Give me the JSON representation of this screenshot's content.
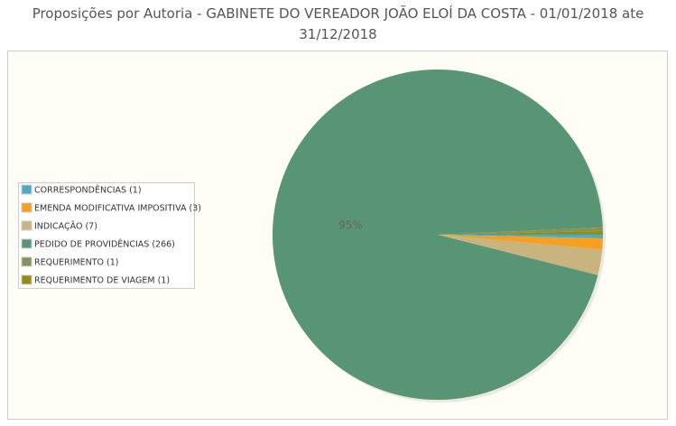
{
  "chart_data": {
    "type": "pie",
    "title": "Proposições por Autoria - GABINETE DO VEREADOR JOÃO ELOÍ DA COSTA - 01/01/2018 ate 31/12/2018",
    "categories": [
      "CORRESPONDÊNCIAS (1)",
      "EMENDA MODIFICATIVA IMPOSITIVA (3)",
      "INDICAÇÃO (7)",
      "PEDIDO DE PROVIDÊNCIAS (266)",
      "REQUERIMENTO (1)",
      "REQUERIMENTO DE VIAGEM (1)"
    ],
    "values": [
      1,
      3,
      7,
      266,
      1,
      1
    ],
    "value_labels": [
      null,
      null,
      null,
      "95%",
      null,
      null
    ],
    "colors": [
      "#4bacc6",
      "#f5a01e",
      "#c9b37f",
      "#579575",
      "#839557",
      "#958c12"
    ],
    "legend": "left"
  }
}
